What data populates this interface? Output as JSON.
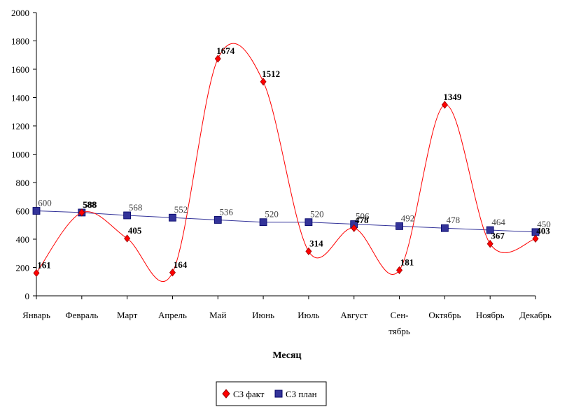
{
  "chart_data": {
    "type": "line",
    "categories": [
      [
        "Январь"
      ],
      [
        "Февраль"
      ],
      [
        "Март"
      ],
      [
        "Апрель"
      ],
      [
        "Май"
      ],
      [
        "Июнь"
      ],
      [
        "Июль"
      ],
      [
        "Август"
      ],
      [
        "Сен-",
        "тябрь"
      ],
      [
        "Октябрь"
      ],
      [
        "Ноябрь"
      ],
      [
        "Декабрь"
      ]
    ],
    "series": [
      {
        "name": "СЗ факт",
        "values": [
          161,
          588,
          405,
          164,
          1674,
          1512,
          314,
          478,
          181,
          1349,
          367,
          403
        ],
        "color": "#ff0000",
        "marker": "diamond",
        "smooth": true
      },
      {
        "name": "СЗ план",
        "values": [
          600,
          588,
          568,
          552,
          536,
          520,
          520,
          506,
          492,
          478,
          464,
          450
        ],
        "color": "#333399",
        "marker": "square",
        "smooth": false
      }
    ],
    "xlabel": "Месяц",
    "ylabel": "",
    "ylim": [
      0,
      2000
    ],
    "yticks": [
      0,
      200,
      400,
      600,
      800,
      1000,
      1200,
      1400,
      1600,
      1800,
      2000
    ],
    "grid": false,
    "legend": "bottom-center"
  }
}
